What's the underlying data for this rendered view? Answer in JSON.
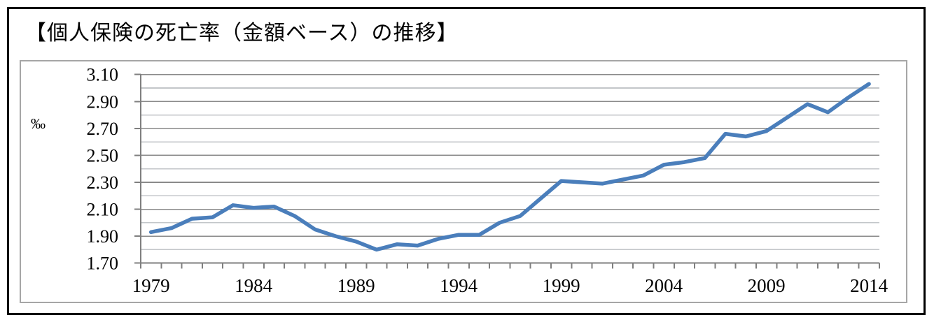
{
  "figure": {
    "title": "【個人保険の死亡率（金額ベース）の推移】",
    "unit_label": "‰"
  },
  "colors": {
    "line": "#4a7ebb",
    "major_grid": "#8a8a8a",
    "minor_grid": "#c3c6c9",
    "axis": "#7f7f7f",
    "frame_border": "#a6a6a6",
    "outer_border": "#000000",
    "text": "#000000"
  },
  "chart_data": {
    "type": "line",
    "title": "【個人保険の死亡率（金額ベース）の推移】",
    "xlabel": "",
    "ylabel": "‰",
    "ylim": [
      1.7,
      3.1
    ],
    "y_major_step": 0.2,
    "y_minor_step": 0.1,
    "grid": "horizontal",
    "legend": "none",
    "y_tick_labels": [
      "3.10",
      "2.90",
      "2.70",
      "2.50",
      "2.30",
      "2.10",
      "1.90",
      "1.70"
    ],
    "x_tick_labels": [
      "1979",
      "1984",
      "1989",
      "1994",
      "1999",
      "2004",
      "2009",
      "2014"
    ],
    "x": [
      1979,
      1980,
      1981,
      1982,
      1983,
      1984,
      1985,
      1986,
      1987,
      1988,
      1989,
      1990,
      1991,
      1992,
      1993,
      1994,
      1995,
      1996,
      1997,
      1998,
      1999,
      2000,
      2001,
      2002,
      2003,
      2004,
      2005,
      2006,
      2007,
      2008,
      2009,
      2010,
      2011,
      2012,
      2013,
      2014
    ],
    "values": [
      1.93,
      1.96,
      2.03,
      2.04,
      2.13,
      2.11,
      2.12,
      2.05,
      1.95,
      1.9,
      1.86,
      1.8,
      1.84,
      1.83,
      1.88,
      1.91,
      1.91,
      2.0,
      2.05,
      2.18,
      2.31,
      2.3,
      2.29,
      2.32,
      2.35,
      2.43,
      2.45,
      2.48,
      2.66,
      2.64,
      2.68,
      2.78,
      2.88,
      2.82,
      2.93,
      3.03
    ]
  }
}
